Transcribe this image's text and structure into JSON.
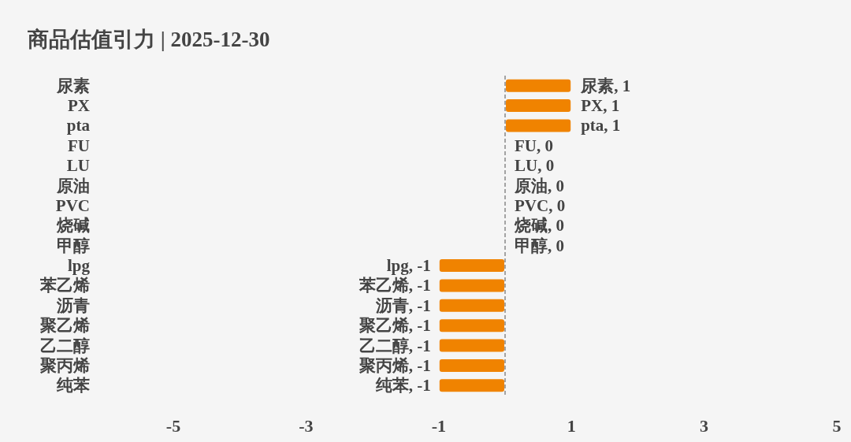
{
  "chart_data": {
    "type": "bar",
    "orientation": "horizontal",
    "title": "商品估值引力 | 2025-12-30",
    "categories": [
      "尿素",
      "PX",
      "pta",
      "FU",
      "LU",
      "原油",
      "PVC",
      "烧碱",
      "甲醇",
      "lpg",
      "苯乙烯",
      "沥青",
      "聚乙烯",
      "乙二醇",
      "聚丙烯",
      "纯苯"
    ],
    "values": [
      1,
      1,
      1,
      0,
      0,
      0,
      0,
      0,
      0,
      -1,
      -1,
      -1,
      -1,
      -1,
      -1,
      -1
    ],
    "value_labels": [
      "尿素, 1",
      "PX, 1",
      "pta, 1",
      "FU, 0",
      "LU, 0",
      "原油, 0",
      "PVC, 0",
      "烧碱, 0",
      "甲醇, 0",
      "lpg, -1",
      "苯乙烯, -1",
      "沥青, -1",
      "聚乙烯, -1",
      "乙二醇, -1",
      "聚丙烯, -1",
      "纯苯, -1"
    ],
    "color": "#f08300",
    "xlim": [
      -5,
      5
    ],
    "xticks": [
      -5,
      -3,
      -1,
      1,
      3,
      5
    ],
    "ref_lines": [
      {
        "axis": "x",
        "value": 0,
        "color": "#777777",
        "line_style": "dashed"
      }
    ]
  }
}
